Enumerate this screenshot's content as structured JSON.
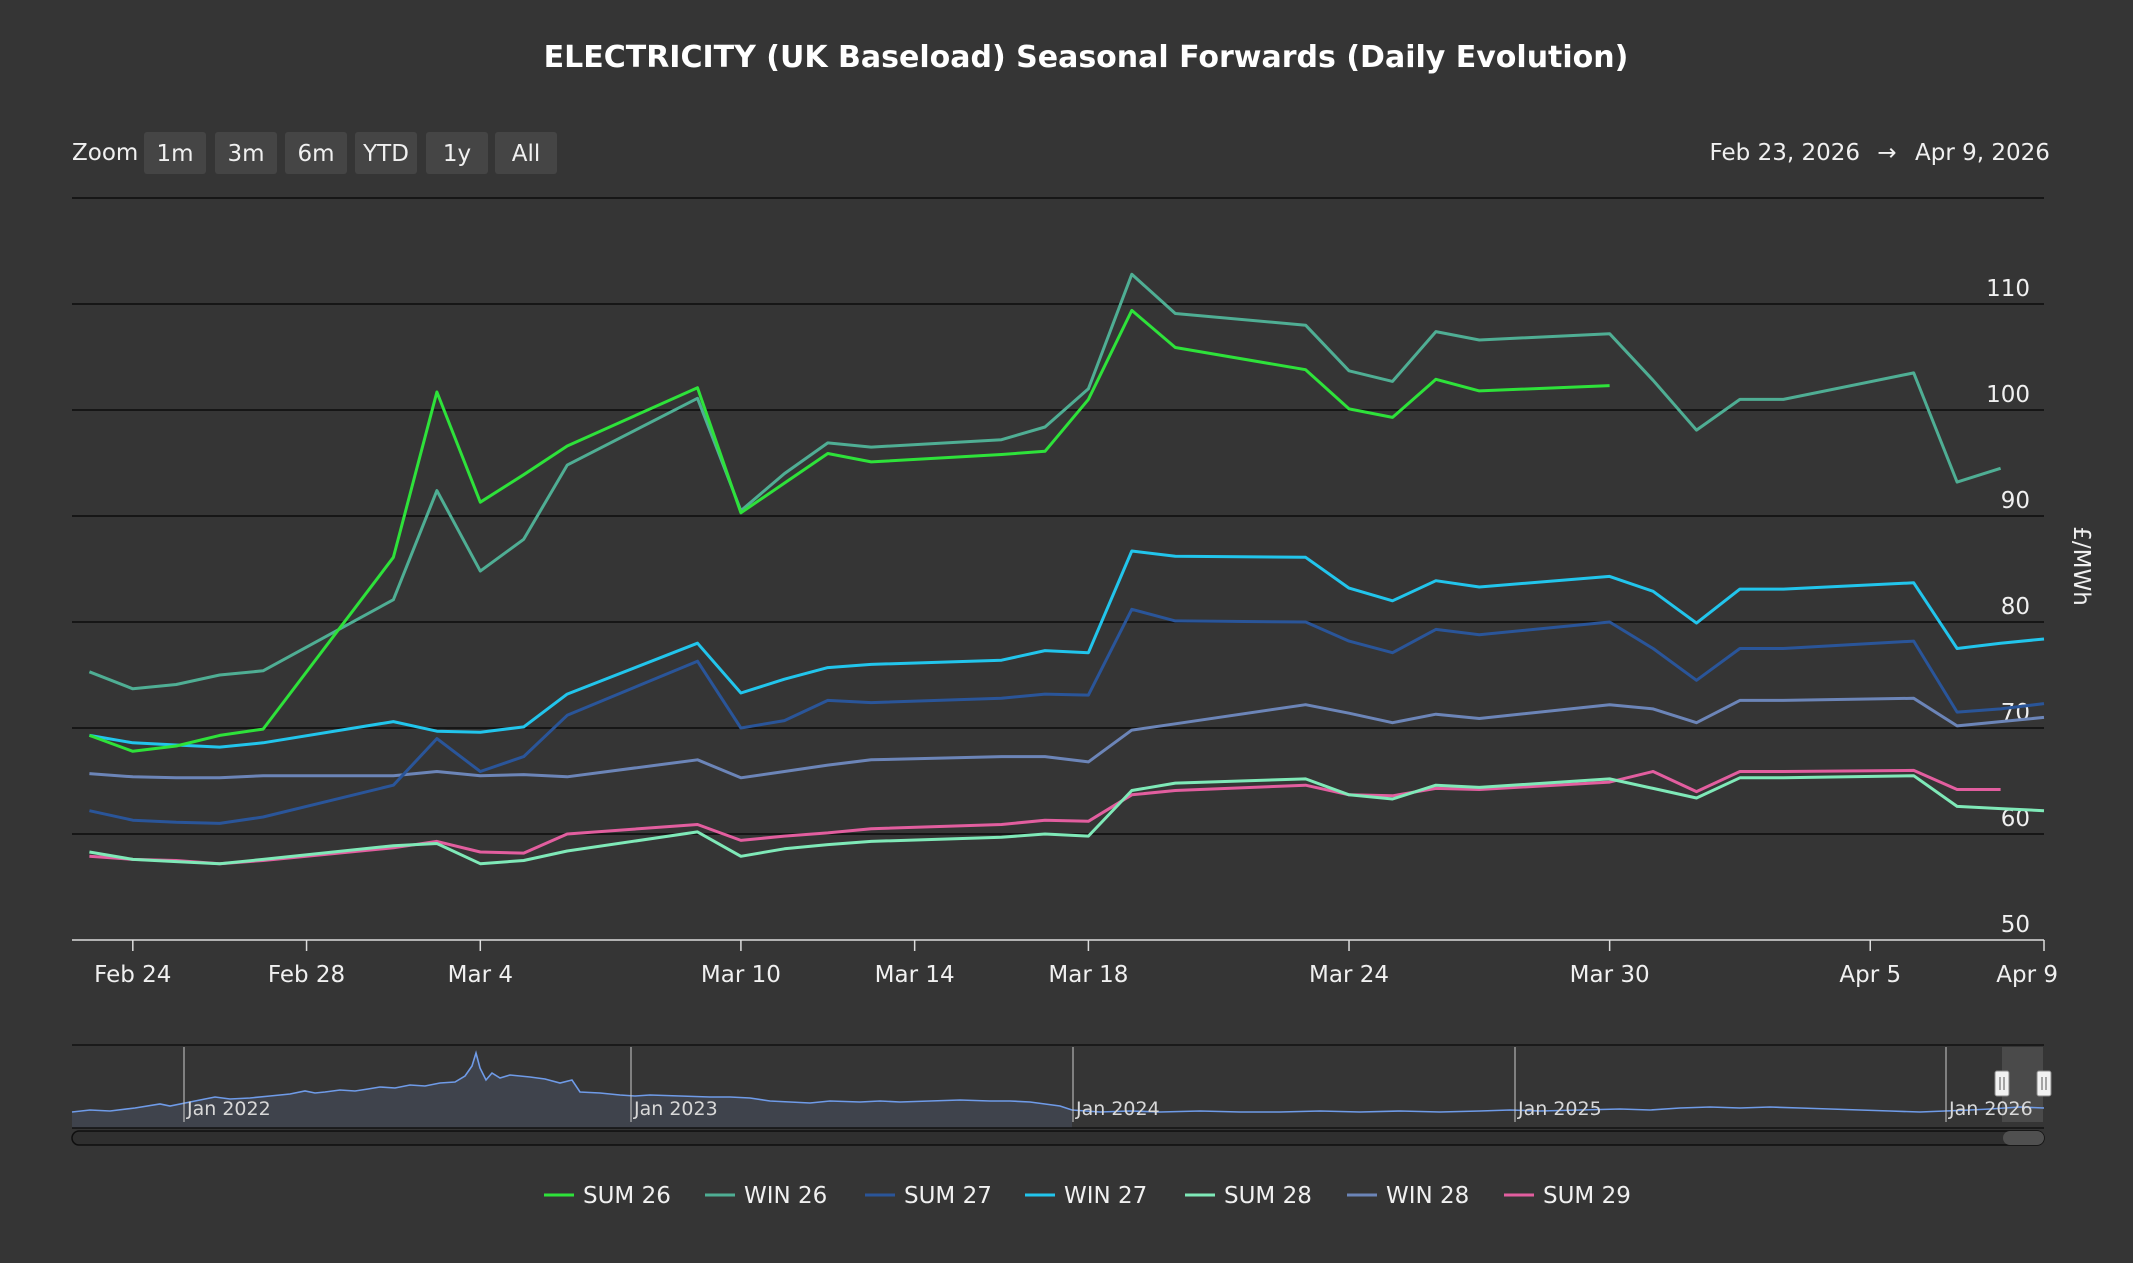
{
  "title": "ELECTRICITY (UK Baseload) Seasonal Forwards (Daily Evolution)",
  "zoom": {
    "label": "Zoom",
    "buttons": [
      "1m",
      "3m",
      "6m",
      "YTD",
      "1y",
      "All"
    ]
  },
  "range": {
    "from": "Feb 23, 2026",
    "arrow": "→",
    "to": "Apr 9, 2026"
  },
  "navigator": {
    "labels": [
      "Jan 2022",
      "Jan 2023",
      "Jan 2024",
      "Jan 2025",
      "Jan 2026"
    ],
    "line_color": "#6f9be8"
  },
  "chart_data": {
    "type": "line",
    "x_range": [
      "2026-02-23",
      "2026-04-09"
    ],
    "x_ticks": [
      {
        "date": "2026-02-24",
        "label": "Feb 24"
      },
      {
        "date": "2026-02-28",
        "label": "Feb 28"
      },
      {
        "date": "2026-03-04",
        "label": "Mar 4"
      },
      {
        "date": "2026-03-10",
        "label": "Mar 10"
      },
      {
        "date": "2026-03-14",
        "label": "Mar 14"
      },
      {
        "date": "2026-03-18",
        "label": "Mar 18"
      },
      {
        "date": "2026-03-24",
        "label": "Mar 24"
      },
      {
        "date": "2026-03-30",
        "label": "Mar 30"
      },
      {
        "date": "2026-04-05",
        "label": "Apr 5"
      },
      {
        "date": "2026-04-09",
        "label": "Apr 9"
      }
    ],
    "ylabel": "£/MWh",
    "ylim": [
      50,
      120
    ],
    "y_ticks": [
      50,
      60,
      70,
      80,
      90,
      100,
      110
    ],
    "grid": true,
    "legend_position": "bottom",
    "dates": [
      "2026-02-23",
      "2026-02-24",
      "2026-02-25",
      "2026-02-26",
      "2026-02-27",
      "2026-03-02",
      "2026-03-03",
      "2026-03-04",
      "2026-03-05",
      "2026-03-06",
      "2026-03-09",
      "2026-03-10",
      "2026-03-11",
      "2026-03-12",
      "2026-03-13",
      "2026-03-16",
      "2026-03-17",
      "2026-03-18",
      "2026-03-19",
      "2026-03-20",
      "2026-03-23",
      "2026-03-24",
      "2026-03-25",
      "2026-03-26",
      "2026-03-27",
      "2026-03-30",
      "2026-03-31",
      "2026-04-01",
      "2026-04-02",
      "2026-04-03",
      "2026-04-06",
      "2026-04-07",
      "2026-04-08",
      "2026-04-09"
    ],
    "series": [
      {
        "name": "SUM 26",
        "color": "#2ee23a",
        "values": [
          69.3,
          67.8,
          68.3,
          69.3,
          69.9,
          86.1,
          101.7,
          91.3,
          93.9,
          96.6,
          102.1,
          90.3,
          93.1,
          95.9,
          95.1,
          95.8,
          96.1,
          101.0,
          109.4,
          105.9,
          103.8,
          100.1,
          99.3,
          102.9,
          101.8,
          102.3,
          null,
          null,
          null,
          null,
          null,
          null,
          null,
          null
        ]
      },
      {
        "name": "WIN 26",
        "color": "#4fae94",
        "values": [
          75.3,
          73.7,
          74.1,
          75.0,
          75.4,
          82.1,
          92.4,
          84.8,
          87.8,
          94.8,
          101.1,
          90.5,
          94.0,
          96.9,
          96.5,
          97.2,
          98.4,
          102.0,
          112.8,
          109.1,
          108.0,
          103.7,
          102.7,
          107.4,
          106.6,
          107.2,
          102.8,
          98.1,
          101.0,
          101.0,
          103.5,
          93.2,
          94.5,
          null
        ]
      },
      {
        "name": "SUM 27",
        "color": "#2a5599",
        "values": [
          62.2,
          61.3,
          61.1,
          61.0,
          61.6,
          64.6,
          69.0,
          65.9,
          67.3,
          71.2,
          76.3,
          70.0,
          70.7,
          72.6,
          72.4,
          72.8,
          73.2,
          73.1,
          81.2,
          80.1,
          80.0,
          78.2,
          77.1,
          79.3,
          78.8,
          80.0,
          77.5,
          74.5,
          77.5,
          77.5,
          78.2,
          71.5,
          71.8,
          72.3
        ]
      },
      {
        "name": "WIN 27",
        "color": "#22c5ec",
        "values": [
          69.3,
          68.6,
          68.4,
          68.2,
          68.6,
          70.6,
          69.7,
          69.6,
          70.1,
          73.2,
          78.0,
          73.3,
          74.6,
          75.7,
          76.0,
          76.4,
          77.3,
          77.1,
          86.7,
          86.2,
          86.1,
          83.2,
          82.0,
          83.9,
          83.3,
          84.3,
          82.9,
          79.9,
          83.1,
          83.1,
          83.7,
          77.5,
          78.0,
          78.4
        ]
      },
      {
        "name": "SUM 28",
        "color": "#7fe9b8",
        "values": [
          58.3,
          57.6,
          57.4,
          57.2,
          57.6,
          58.9,
          59.1,
          57.2,
          57.5,
          58.4,
          60.2,
          57.9,
          58.6,
          59.0,
          59.3,
          59.7,
          60.0,
          59.8,
          64.1,
          64.8,
          65.2,
          63.7,
          63.3,
          64.6,
          64.4,
          65.2,
          64.3,
          63.4,
          65.3,
          65.3,
          65.5,
          62.6,
          62.4,
          62.2
        ]
      },
      {
        "name": "WIN 28",
        "color": "#6c85b8",
        "values": [
          65.7,
          65.4,
          65.3,
          65.3,
          65.5,
          65.5,
          65.9,
          65.5,
          65.6,
          65.4,
          67.0,
          65.3,
          65.9,
          66.5,
          67.0,
          67.3,
          67.3,
          66.8,
          69.8,
          70.4,
          72.2,
          71.4,
          70.5,
          71.3,
          70.9,
          72.2,
          71.8,
          70.5,
          72.6,
          72.6,
          72.8,
          70.2,
          70.6,
          71.0
        ]
      },
      {
        "name": "SUM 29",
        "color": "#e25e9f",
        "values": [
          57.9,
          57.6,
          57.5,
          57.2,
          57.5,
          58.7,
          59.3,
          58.3,
          58.2,
          60.0,
          60.9,
          59.4,
          59.8,
          60.1,
          60.5,
          60.9,
          61.3,
          61.2,
          63.7,
          64.1,
          64.6,
          63.7,
          63.6,
          64.3,
          64.2,
          64.9,
          65.9,
          64.0,
          65.9,
          65.9,
          66.0,
          64.2,
          64.2,
          null
        ]
      }
    ]
  }
}
